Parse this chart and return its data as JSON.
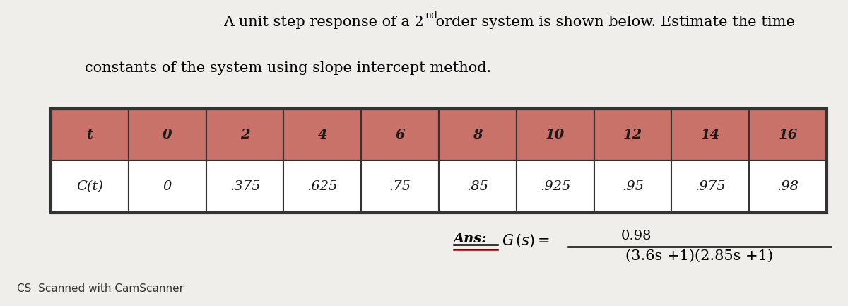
{
  "title_line1": "A unit step response of a 2",
  "title_superscript": "nd",
  "title_line1_rest": " order system is shown below. Estimate the time",
  "title_line2": "constants of the system using slope intercept method.",
  "header_row": [
    "t",
    "0",
    "2",
    "4",
    "6",
    "8",
    "10",
    "12",
    "14",
    "16"
  ],
  "data_row_label": "C(t)",
  "data_row_values": [
    "0",
    ".375",
    ".625",
    ".75",
    ".85",
    ".925",
    ".95",
    ".975",
    ".98"
  ],
  "ans_formula_num": "0.98",
  "ans_formula_den": "(3.6s +1)(2.85s +1)",
  "header_bg": "#c8726a",
  "data_bg": "#ffffff",
  "table_border": "#333333",
  "fig_bg": "#f0eeea",
  "footer_text": "CS  Scanned with CamScanner"
}
